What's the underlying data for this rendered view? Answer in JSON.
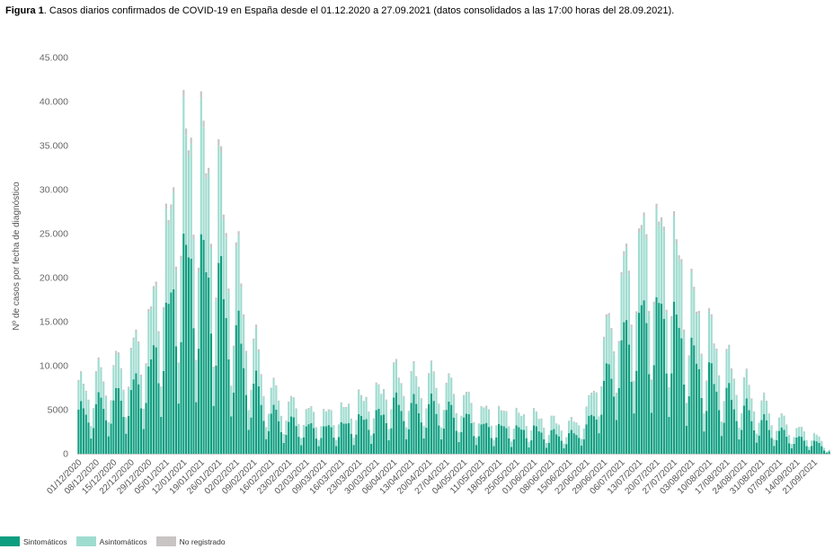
{
  "caption": {
    "bold": "Figura 1",
    "text": ". Casos diarios confirmados de COVID-19 en España desde el 01.12.2020 a 27.09.2021 (datos consolidados a las 17:00 horas del 28.09.2021)."
  },
  "chart_data": {
    "type": "bar",
    "stacked": true,
    "title": "",
    "xlabel": "",
    "ylabel": "Nº de casos por fecha de diagnóstico",
    "ylim": [
      0,
      45000
    ],
    "yticks": [
      0,
      5000,
      10000,
      15000,
      20000,
      25000,
      30000,
      35000,
      40000,
      45000
    ],
    "ytick_labels": [
      "0",
      "5000",
      "10.000",
      "15.000",
      "20.000",
      "25.000",
      "30.000",
      "35.000",
      "40.000",
      "45.000"
    ],
    "x_start": "01/12/2020",
    "x_end": "27/09/2021",
    "xtick_labels": [
      "01/12/2020",
      "08/12/2020",
      "15/12/2020",
      "22/12/2020",
      "29/12/2020",
      "05/01/2021",
      "12/01/2021",
      "19/01/2021",
      "26/01/2021",
      "02/02/2021",
      "09/02/2021",
      "16/02/2021",
      "23/02/2021",
      "02/03/2021",
      "09/03/2021",
      "16/03/2021",
      "23/03/2021",
      "30/03/2021",
      "06/04/2021",
      "13/04/2021",
      "20/04/2021",
      "27/04/2021",
      "04/05/2021",
      "11/05/2021",
      "18/05/2021",
      "25/05/2021",
      "01/06/2021",
      "08/06/2021",
      "15/06/2021",
      "22/06/2021",
      "29/06/2021",
      "06/07/2021",
      "13/07/2021",
      "20/07/2021",
      "27/07/2021",
      "03/08/2021",
      "10/08/2021",
      "17/08/2021",
      "24/08/2021",
      "31/08/2021",
      "07/09/2021",
      "14/09/2021",
      "21/09/2021"
    ],
    "series_total_weekly_peaks": [
      [
        "01/12/2020",
        9300
      ],
      [
        "08/12/2020",
        11000
      ],
      [
        "15/12/2020",
        12200
      ],
      [
        "22/12/2020",
        14500
      ],
      [
        "29/12/2020",
        19000
      ],
      [
        "05/01/2021",
        31000
      ],
      [
        "12/01/2021",
        43000
      ],
      [
        "19/01/2021",
        42000
      ],
      [
        "26/01/2021",
        37000
      ],
      [
        "02/02/2021",
        26000
      ],
      [
        "09/02/2021",
        15000
      ],
      [
        "16/02/2021",
        9000
      ],
      [
        "23/02/2021",
        7200
      ],
      [
        "02/03/2021",
        6000
      ],
      [
        "09/03/2021",
        5700
      ],
      [
        "16/03/2021",
        6200
      ],
      [
        "23/03/2021",
        7500
      ],
      [
        "30/03/2021",
        8300
      ],
      [
        "06/04/2021",
        11000
      ],
      [
        "13/04/2021",
        10500
      ],
      [
        "20/04/2021",
        10800
      ],
      [
        "27/04/2021",
        9800
      ],
      [
        "04/05/2021",
        8000
      ],
      [
        "11/05/2021",
        6200
      ],
      [
        "18/05/2021",
        5900
      ],
      [
        "25/05/2021",
        5400
      ],
      [
        "01/06/2021",
        5300
      ],
      [
        "08/06/2021",
        4500
      ],
      [
        "15/06/2021",
        4100
      ],
      [
        "22/06/2021",
        6200
      ],
      [
        "29/06/2021",
        16000
      ],
      [
        "06/07/2021",
        25000
      ],
      [
        "13/07/2021",
        30000
      ],
      [
        "20/07/2021",
        31500
      ],
      [
        "27/07/2021",
        29000
      ],
      [
        "03/08/2021",
        21500
      ],
      [
        "10/08/2021",
        17000
      ],
      [
        "17/08/2021",
        12700
      ],
      [
        "24/08/2021",
        9800
      ],
      [
        "31/08/2021",
        7200
      ],
      [
        "07/09/2021",
        5000
      ],
      [
        "14/09/2021",
        3500
      ],
      [
        "21/09/2021",
        2700
      ],
      [
        "27/09/2021",
        800
      ]
    ],
    "series": [
      {
        "name": "Sintomáticos",
        "color": "#0d9e80",
        "share": 0.6
      },
      {
        "name": "Asintomáticos",
        "color": "#9fdcd0",
        "share": 0.38
      },
      {
        "name": "No registrado",
        "color": "#c8c4c4",
        "share": 0.02
      }
    ],
    "weekday_factors": [
      0.98,
      1.0,
      0.92,
      0.85,
      0.62,
      0.3,
      0.55
    ],
    "grid": false,
    "legend_position": "bottom-left"
  }
}
